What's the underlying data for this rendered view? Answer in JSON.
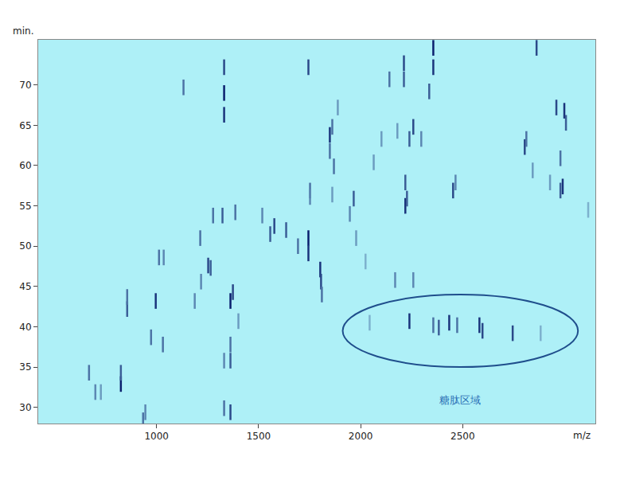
{
  "chart_data": {
    "type": "scatter",
    "x_label": "m/z",
    "y_label": "min.",
    "xlim": [
      420,
      3150
    ],
    "ylim": [
      28,
      75.6
    ],
    "xticks": [
      1000,
      1500,
      2000,
      2500
    ],
    "yticks": [
      30,
      35,
      40,
      45,
      50,
      55,
      60,
      65,
      70
    ],
    "grid": false,
    "color": "#0a1f6e",
    "marker": "line-ns",
    "x": [
      1331,
      1331,
      1331,
      1132,
      1744,
      1744,
      1744,
      1802,
      1806,
      1810,
      1693,
      1635,
      1577,
      1557,
      1518,
      1386,
      1277,
      1323,
      1214,
      1253,
      1265,
      1362,
      1374,
      1218,
      1187,
      996,
      1012,
      1035,
      973,
      1031,
      856,
      856,
      825,
      825,
      669,
      700,
      727,
      934,
      945,
      1362,
      1331,
      1362,
      1331,
      1362,
      1401,
      1752,
      1752,
      1849,
      1849,
      1861,
      1888,
      1966,
      1947,
      1869,
      1861,
      1978,
      2212,
      2212,
      2239,
      2258,
      2297,
      2219,
      2219,
      2227,
      2356,
      2356,
      2336,
      2141,
      2453,
      2465,
      2804,
      2812,
      2959,
      2998,
      3006,
      2979,
      2990,
      2979,
      2862,
      2843,
      2928,
      3115,
      2239,
      2356,
      2383,
      2434,
      2473,
      2582,
      2597,
      2745,
      2882,
      2044,
      2169,
      2258,
      2024,
      2064,
      2180,
      2102
    ],
    "y": [
      69.0,
      72.2,
      66.3,
      69.7,
      72.2,
      51.0,
      49.1,
      47.1,
      45.6,
      44.0,
      50.0,
      52.0,
      52.5,
      51.5,
      53.8,
      54.2,
      53.8,
      53.8,
      51.0,
      47.6,
      47.3,
      43.2,
      44.3,
      45.6,
      43.2,
      43.2,
      48.6,
      48.6,
      38.7,
      37.8,
      42.2,
      43.7,
      32.9,
      34.3,
      34.3,
      31.9,
      31.9,
      28.4,
      29.4,
      29.4,
      29.9,
      35.8,
      35.8,
      37.8,
      40.7,
      56.9,
      56.1,
      61.8,
      63.8,
      64.8,
      67.2,
      55.9,
      54.0,
      59.9,
      56.4,
      51.0,
      72.7,
      70.7,
      63.3,
      64.8,
      63.3,
      57.9,
      55.0,
      55.9,
      74.6,
      72.2,
      69.2,
      70.7,
      56.9,
      57.9,
      62.3,
      63.3,
      67.2,
      66.8,
      65.3,
      60.9,
      57.4,
      56.9,
      74.6,
      59.4,
      57.9,
      54.5,
      40.7,
      40.2,
      39.9,
      40.5,
      40.2,
      40.2,
      39.5,
      39.2,
      39.2,
      40.5,
      45.8,
      45.8,
      48.1,
      60.4,
      64.3,
      63.3
    ],
    "intensity": [
      1.0,
      0.8,
      0.9,
      0.6,
      0.8,
      1.0,
      0.9,
      0.9,
      0.8,
      0.6,
      0.6,
      0.7,
      0.8,
      0.7,
      0.5,
      0.6,
      0.6,
      0.7,
      0.6,
      0.8,
      0.7,
      1.0,
      0.8,
      0.5,
      0.5,
      0.9,
      0.6,
      0.5,
      0.6,
      0.6,
      0.7,
      0.6,
      1.0,
      0.7,
      0.6,
      0.5,
      0.4,
      0.6,
      0.5,
      0.8,
      0.6,
      0.7,
      0.5,
      0.6,
      0.4,
      0.6,
      0.5,
      0.6,
      0.9,
      0.6,
      0.4,
      0.7,
      0.5,
      0.6,
      0.4,
      0.4,
      0.8,
      0.7,
      0.7,
      0.8,
      0.5,
      0.7,
      0.9,
      0.7,
      1.0,
      0.9,
      0.7,
      0.6,
      0.8,
      0.5,
      0.8,
      0.6,
      0.8,
      0.9,
      0.7,
      0.6,
      0.9,
      0.7,
      0.8,
      0.4,
      0.4,
      0.3,
      0.9,
      0.6,
      0.7,
      0.9,
      0.6,
      0.9,
      0.8,
      0.8,
      0.3,
      0.3,
      0.5,
      0.5,
      0.3,
      0.4,
      0.4,
      0.4
    ],
    "region": {
      "label": "糖肽区域",
      "x0": 1912,
      "x1": 3065,
      "y0": 35,
      "y1": 44
    }
  }
}
